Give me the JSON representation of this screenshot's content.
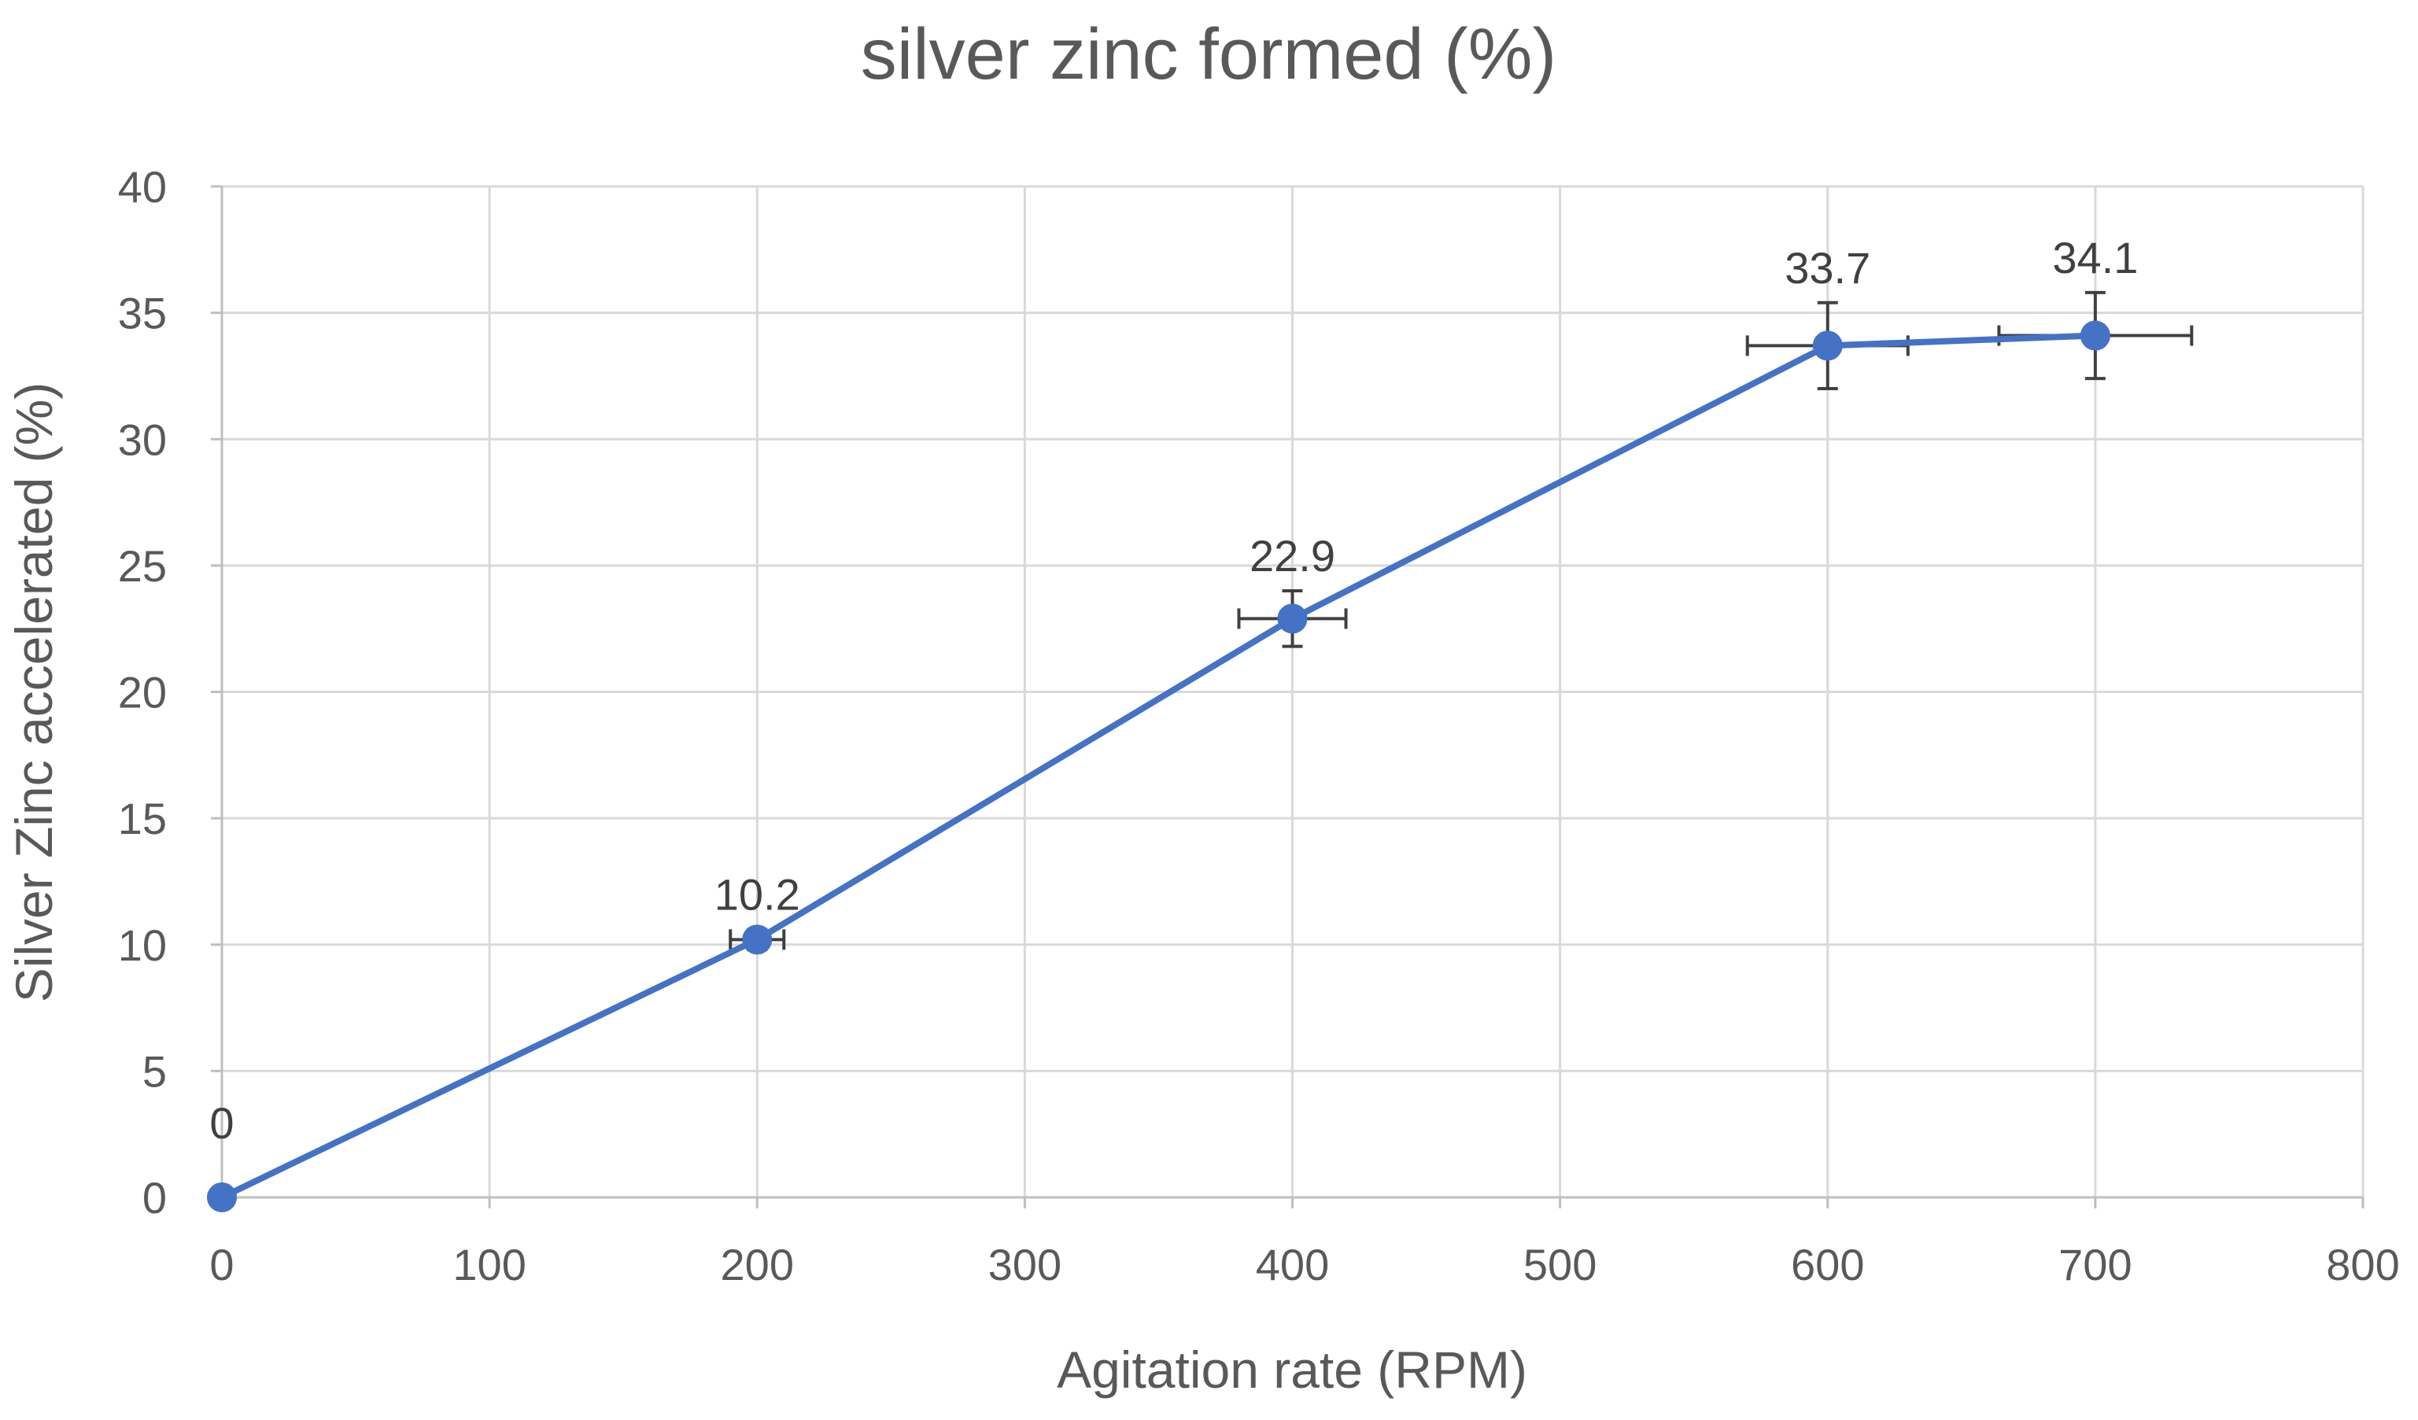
{
  "chart_data": {
    "type": "line",
    "title": "silver zinc formed (%)",
    "xlabel": "Agitation rate (RPM)",
    "ylabel": "Silver Zinc accelerated (%)",
    "xlim": [
      0,
      800
    ],
    "ylim": [
      0,
      40
    ],
    "xticks": [
      0,
      100,
      200,
      300,
      400,
      500,
      600,
      700,
      800
    ],
    "yticks": [
      0,
      5,
      10,
      15,
      20,
      25,
      30,
      35,
      40
    ],
    "grid": true,
    "legend": "none",
    "series": [
      {
        "name": "silver zinc formed (%)",
        "color": "#4472c4",
        "marker": "circle",
        "x": [
          0,
          200,
          400,
          600,
          700
        ],
        "y": [
          0,
          10.2,
          22.9,
          33.7,
          34.1
        ],
        "labels": [
          "0",
          "10.2",
          "22.9",
          "33.7",
          "34.1"
        ],
        "y_error": [
          0,
          0.4,
          1.1,
          1.7,
          1.7
        ],
        "x_error": [
          0,
          10,
          20,
          30,
          36
        ]
      }
    ]
  }
}
